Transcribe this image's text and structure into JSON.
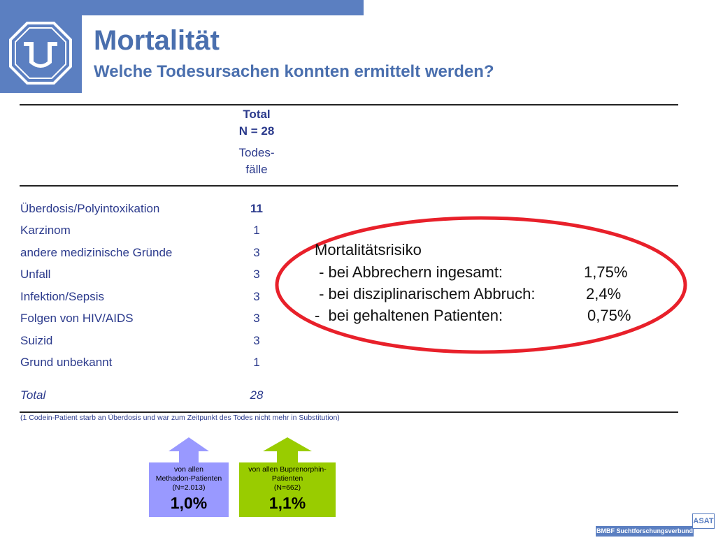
{
  "header": {
    "title": "Mortalität",
    "subtitle": "Welche Todesursachen konnten ermittelt werden?"
  },
  "table": {
    "col_total_line1": "Total",
    "col_total_line2": "N = 28",
    "col_sub_line1": "Todes-",
    "col_sub_line2": "fälle",
    "rows": [
      {
        "label": "Überdosis/Polyintoxikation",
        "value": "11"
      },
      {
        "label": "Karzinom",
        "value": "1"
      },
      {
        "label": "andere medizinische Gründe",
        "value": "3"
      },
      {
        "label": "Unfall",
        "value": "3"
      },
      {
        "label": "Infektion/Sepsis",
        "value": "3"
      },
      {
        "label": "Folgen von HIV/AIDS",
        "value": "3"
      },
      {
        "label": "Suizid",
        "value": "3"
      },
      {
        "label": "Grund unbekannt",
        "value": "1"
      }
    ],
    "total_label": "Total",
    "total_value": "28",
    "footnote": "(1 Codein-Patient starb an Überdosis und war zum Zeitpunkt des Todes nicht mehr in Substitution)"
  },
  "risk": {
    "heading": "Mortalitätsrisiko",
    "line1": " - bei Abbrechern ingesamt:",
    "value1": "1,75%",
    "line2": " - bei disziplinarischem Abbruch:",
    "value2": "2,4%",
    "line3": "-  bei gehaltenen Patienten:",
    "value3": "0,75%"
  },
  "arrows": {
    "methadon": {
      "l1": "von allen",
      "l2": "Methadon-Patienten",
      "l3": "(N=2.013)",
      "value": "1,0%",
      "color": "#9999ff"
    },
    "bupren": {
      "l1": "von allen Buprenorphin-",
      "l2": "Patienten",
      "l3": "(N=662)",
      "value": "1,1%",
      "color": "#99cc00"
    }
  },
  "footer": {
    "brand": "BMBF Suchtforschungsverbund ASAT",
    "logo_text": "ASAT"
  }
}
